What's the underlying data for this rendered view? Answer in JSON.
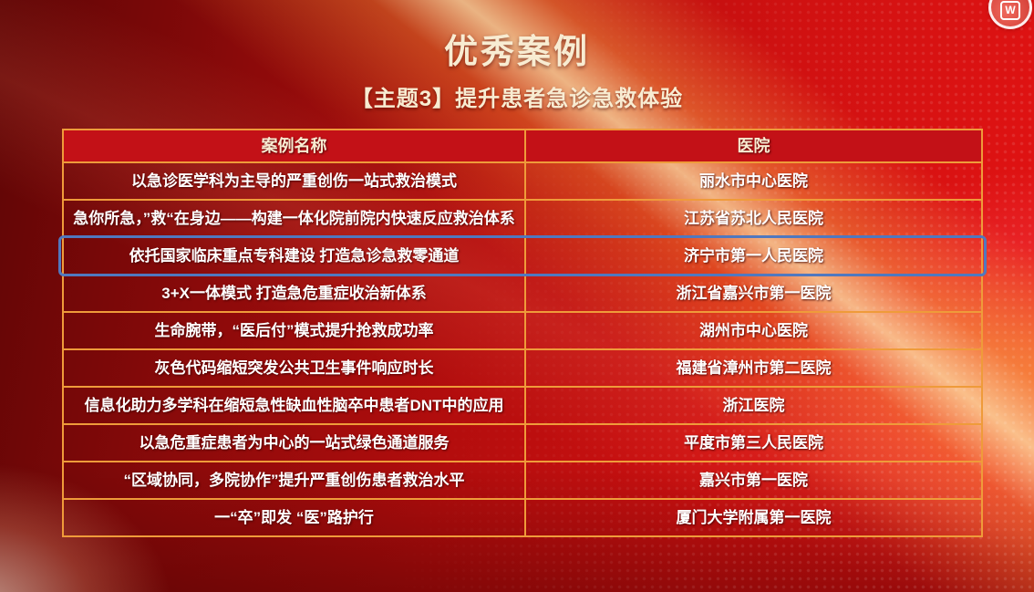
{
  "page": {
    "title": "优秀案例",
    "subtitle": "【主题3】提升患者急诊急救体验"
  },
  "watermark": {
    "letter": "W"
  },
  "table": {
    "headers": [
      "案例名称",
      "医院"
    ],
    "highlighted_row_index": 2,
    "rows": [
      {
        "case": "以急诊医学科为主导的严重创伤一站式救治模式",
        "hospital": "丽水市中心医院"
      },
      {
        "case": "急你所急，”救“在身边——构建一体化院前院内快速反应救治体系",
        "hospital": "江苏省苏北人民医院"
      },
      {
        "case": "依托国家临床重点专科建设 打造急诊急救零通道",
        "hospital": "济宁市第一人民医院"
      },
      {
        "case": "3+X一体模式 打造急危重症收治新体系",
        "hospital": "浙江省嘉兴市第一医院"
      },
      {
        "case": "生命腕带，“医后付”模式提升抢救成功率",
        "hospital": "湖州市中心医院"
      },
      {
        "case": "灰色代码缩短突发公共卫生事件响应时长",
        "hospital": "福建省漳州市第二医院"
      },
      {
        "case": "信息化助力多学科在缩短急性缺血性脑卒中患者DNT中的应用",
        "hospital": "浙江医院"
      },
      {
        "case": "以急危重症患者为中心的一站式绿色通道服务",
        "hospital": "平度市第三人民医院"
      },
      {
        "case": "“区域协同，多院协作”提升严重创伤患者救治水平",
        "hospital": "嘉兴市第一医院"
      },
      {
        "case": "一“卒”即发 “医”路护行",
        "hospital": "厦门大学附属第一医院"
      }
    ]
  },
  "colors": {
    "background_red": "#c01010",
    "table_border": "#ef9b3a",
    "header_fill": "#c31117",
    "highlight_border": "#5078bf",
    "title_text": "#f8ecd2",
    "body_text": "#ffffff"
  }
}
